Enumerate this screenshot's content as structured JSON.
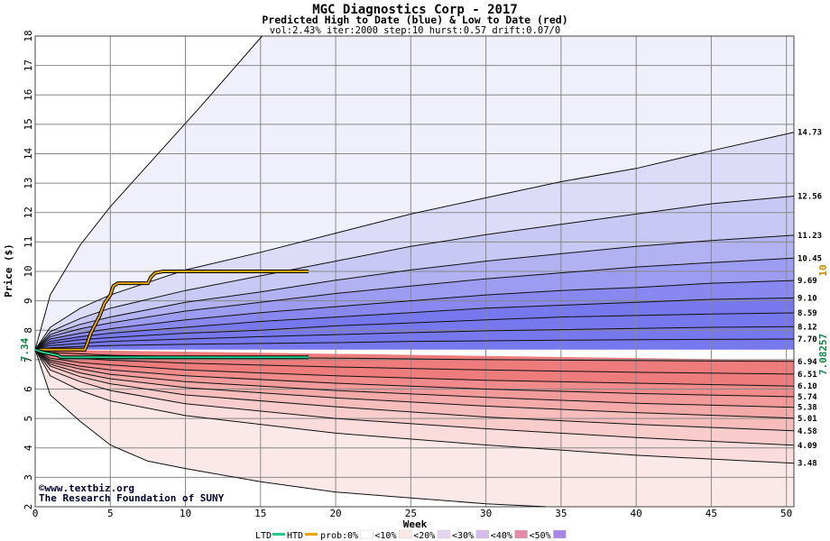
{
  "chart_data": {
    "type": "area",
    "title": "MGC Diagnostics Corp - 2017",
    "subtitle": "Predicted High to Date (blue) &  Low to Date (red)",
    "params": "vol:2.43% iter:2000 step:10 hurst:0.57 drift:0.07/0",
    "xlabel": "Week",
    "ylabel": "Price ($)",
    "xlim": [
      0,
      50.5
    ],
    "ylim": [
      2,
      18
    ],
    "x_ticks": [
      0,
      5,
      10,
      15,
      20,
      25,
      30,
      35,
      40,
      45,
      50
    ],
    "y_ticks": [
      2,
      3,
      4,
      5,
      6,
      7,
      8,
      9,
      10,
      11,
      12,
      13,
      14,
      15,
      16,
      17,
      18
    ],
    "grid": true,
    "start_price": 7.34,
    "start_price_label": "7.34",
    "current_low_label": "7.08257",
    "current_high_label": "10",
    "end_labels": [
      "14.73",
      "12.56",
      "11.23",
      "10.45",
      "9.69",
      "9.10",
      "8.59",
      "8.12",
      "7.70",
      "6.94",
      "6.51",
      "6.10",
      "5.74",
      "5.38",
      "5.01",
      "4.58",
      "4.09",
      "3.48"
    ],
    "high_series": [
      {
        "points": [
          [
            0,
            7.34
          ],
          [
            1,
            9.2
          ],
          [
            3,
            10.9
          ],
          [
            5,
            12.2
          ],
          [
            8,
            13.9
          ],
          [
            11,
            15.6
          ],
          [
            15.1,
            18
          ]
        ]
      },
      {
        "points": [
          [
            0,
            7.34
          ],
          [
            1,
            8.1
          ],
          [
            3,
            8.75
          ],
          [
            5,
            9.2
          ],
          [
            10,
            10.05
          ],
          [
            15,
            10.65
          ],
          [
            20,
            11.3
          ],
          [
            25,
            11.95
          ],
          [
            30,
            12.5
          ],
          [
            35,
            13.05
          ],
          [
            40,
            13.5
          ],
          [
            45,
            14.1
          ],
          [
            50.5,
            14.73
          ]
        ]
      },
      {
        "points": [
          [
            0,
            7.34
          ],
          [
            1,
            7.95
          ],
          [
            3,
            8.4
          ],
          [
            5,
            8.75
          ],
          [
            10,
            9.35
          ],
          [
            15,
            9.85
          ],
          [
            20,
            10.35
          ],
          [
            25,
            10.85
          ],
          [
            30,
            11.25
          ],
          [
            35,
            11.6
          ],
          [
            40,
            11.95
          ],
          [
            45,
            12.3
          ],
          [
            50.5,
            12.56
          ]
        ]
      },
      {
        "points": [
          [
            0,
            7.34
          ],
          [
            1,
            7.85
          ],
          [
            3,
            8.2
          ],
          [
            5,
            8.45
          ],
          [
            10,
            8.95
          ],
          [
            15,
            9.3
          ],
          [
            20,
            9.7
          ],
          [
            25,
            10.05
          ],
          [
            30,
            10.35
          ],
          [
            35,
            10.6
          ],
          [
            40,
            10.85
          ],
          [
            45,
            11.05
          ],
          [
            50.5,
            11.23
          ]
        ]
      },
      {
        "points": [
          [
            0,
            7.34
          ],
          [
            1,
            7.78
          ],
          [
            3,
            8.05
          ],
          [
            5,
            8.25
          ],
          [
            10,
            8.65
          ],
          [
            15,
            8.95
          ],
          [
            20,
            9.25
          ],
          [
            25,
            9.5
          ],
          [
            30,
            9.75
          ],
          [
            35,
            9.95
          ],
          [
            40,
            10.15
          ],
          [
            45,
            10.3
          ],
          [
            50.5,
            10.45
          ]
        ]
      },
      {
        "points": [
          [
            0,
            7.34
          ],
          [
            1,
            7.7
          ],
          [
            3,
            7.9
          ],
          [
            5,
            8.05
          ],
          [
            10,
            8.35
          ],
          [
            15,
            8.6
          ],
          [
            20,
            8.8
          ],
          [
            25,
            9.0
          ],
          [
            30,
            9.2
          ],
          [
            35,
            9.35
          ],
          [
            40,
            9.45
          ],
          [
            45,
            9.6
          ],
          [
            50.5,
            9.69
          ]
        ]
      },
      {
        "points": [
          [
            0,
            7.34
          ],
          [
            1,
            7.62
          ],
          [
            3,
            7.78
          ],
          [
            5,
            7.9
          ],
          [
            10,
            8.1
          ],
          [
            15,
            8.3
          ],
          [
            20,
            8.45
          ],
          [
            25,
            8.6
          ],
          [
            30,
            8.75
          ],
          [
            35,
            8.85
          ],
          [
            40,
            8.95
          ],
          [
            45,
            9.05
          ],
          [
            50.5,
            9.1
          ]
        ]
      },
      {
        "points": [
          [
            0,
            7.34
          ],
          [
            1,
            7.55
          ],
          [
            3,
            7.68
          ],
          [
            5,
            7.75
          ],
          [
            10,
            7.9
          ],
          [
            15,
            8.0
          ],
          [
            20,
            8.15
          ],
          [
            25,
            8.25
          ],
          [
            30,
            8.35
          ],
          [
            35,
            8.45
          ],
          [
            40,
            8.5
          ],
          [
            45,
            8.55
          ],
          [
            50.5,
            8.59
          ]
        ]
      },
      {
        "points": [
          [
            0,
            7.34
          ],
          [
            1,
            7.48
          ],
          [
            3,
            7.55
          ],
          [
            5,
            7.62
          ],
          [
            10,
            7.7
          ],
          [
            15,
            7.78
          ],
          [
            20,
            7.85
          ],
          [
            25,
            7.92
          ],
          [
            30,
            7.98
          ],
          [
            35,
            8.02
          ],
          [
            40,
            8.06
          ],
          [
            45,
            8.1
          ],
          [
            50.5,
            8.12
          ]
        ]
      },
      {
        "points": [
          [
            0,
            7.34
          ],
          [
            1,
            7.4
          ],
          [
            3,
            7.45
          ],
          [
            5,
            7.48
          ],
          [
            10,
            7.52
          ],
          [
            15,
            7.55
          ],
          [
            20,
            7.58
          ],
          [
            25,
            7.62
          ],
          [
            30,
            7.64
          ],
          [
            35,
            7.66
          ],
          [
            40,
            7.68
          ],
          [
            45,
            7.69
          ],
          [
            50.5,
            7.7
          ]
        ]
      }
    ],
    "low_series": [
      {
        "points": [
          [
            0,
            7.34
          ],
          [
            1,
            7.25
          ],
          [
            5,
            7.15
          ],
          [
            10,
            7.1
          ],
          [
            20,
            7.05
          ],
          [
            30,
            7.0
          ],
          [
            40,
            6.97
          ],
          [
            50.5,
            6.94
          ]
        ]
      },
      {
        "points": [
          [
            0,
            7.34
          ],
          [
            1,
            7.15
          ],
          [
            3,
            7.05
          ],
          [
            5,
            6.98
          ],
          [
            10,
            6.88
          ],
          [
            20,
            6.75
          ],
          [
            30,
            6.65
          ],
          [
            40,
            6.57
          ],
          [
            50.5,
            6.51
          ]
        ]
      },
      {
        "points": [
          [
            0,
            7.34
          ],
          [
            1,
            7.05
          ],
          [
            3,
            6.9
          ],
          [
            5,
            6.82
          ],
          [
            10,
            6.65
          ],
          [
            20,
            6.45
          ],
          [
            30,
            6.3
          ],
          [
            40,
            6.2
          ],
          [
            50.5,
            6.1
          ]
        ]
      },
      {
        "points": [
          [
            0,
            7.34
          ],
          [
            1,
            6.98
          ],
          [
            3,
            6.78
          ],
          [
            5,
            6.65
          ],
          [
            10,
            6.45
          ],
          [
            20,
            6.2
          ],
          [
            30,
            6.0
          ],
          [
            40,
            5.85
          ],
          [
            50.5,
            5.74
          ]
        ]
      },
      {
        "points": [
          [
            0,
            7.34
          ],
          [
            1,
            6.92
          ],
          [
            3,
            6.68
          ],
          [
            5,
            6.5
          ],
          [
            10,
            6.25
          ],
          [
            20,
            5.95
          ],
          [
            30,
            5.72
          ],
          [
            40,
            5.52
          ],
          [
            50.5,
            5.38
          ]
        ]
      },
      {
        "points": [
          [
            0,
            7.34
          ],
          [
            1,
            6.85
          ],
          [
            3,
            6.55
          ],
          [
            5,
            6.35
          ],
          [
            10,
            6.05
          ],
          [
            20,
            5.7
          ],
          [
            30,
            5.42
          ],
          [
            40,
            5.2
          ],
          [
            50.5,
            5.01
          ]
        ]
      },
      {
        "points": [
          [
            0,
            7.34
          ],
          [
            1,
            6.78
          ],
          [
            3,
            6.42
          ],
          [
            5,
            6.18
          ],
          [
            10,
            5.8
          ],
          [
            20,
            5.4
          ],
          [
            30,
            5.05
          ],
          [
            40,
            4.8
          ],
          [
            50.5,
            4.58
          ]
        ]
      },
      {
        "points": [
          [
            0,
            7.34
          ],
          [
            1,
            6.65
          ],
          [
            3,
            6.25
          ],
          [
            5,
            5.95
          ],
          [
            10,
            5.5
          ],
          [
            20,
            5.0
          ],
          [
            30,
            4.65
          ],
          [
            40,
            4.35
          ],
          [
            50.5,
            4.09
          ]
        ]
      },
      {
        "points": [
          [
            0,
            7.34
          ],
          [
            1,
            6.45
          ],
          [
            3,
            5.95
          ],
          [
            5,
            5.6
          ],
          [
            10,
            5.1
          ],
          [
            20,
            4.5
          ],
          [
            30,
            4.1
          ],
          [
            40,
            3.75
          ],
          [
            50.5,
            3.48
          ]
        ]
      },
      {
        "points": [
          [
            0,
            7.34
          ],
          [
            1,
            5.8
          ],
          [
            3,
            4.9
          ],
          [
            5,
            4.1
          ],
          [
            7.5,
            3.55
          ],
          [
            10,
            3.3
          ],
          [
            15,
            2.85
          ],
          [
            20,
            2.5
          ],
          [
            25,
            2.3
          ],
          [
            30,
            2.1
          ],
          [
            34,
            2
          ]
        ]
      }
    ],
    "htd_path": [
      [
        0,
        7.34
      ],
      [
        1.5,
        7.34
      ],
      [
        3.3,
        7.34
      ],
      [
        3.5,
        7.6
      ],
      [
        3.7,
        7.9
      ],
      [
        4,
        8.2
      ],
      [
        4.3,
        8.5
      ],
      [
        4.6,
        8.9
      ],
      [
        5,
        9.2
      ],
      [
        5.2,
        9.5
      ],
      [
        5.5,
        9.6
      ],
      [
        7.5,
        9.6
      ],
      [
        7.7,
        9.8
      ],
      [
        8,
        9.95
      ],
      [
        8.5,
        10
      ],
      [
        18.2,
        10
      ]
    ],
    "ltd_path": [
      [
        0,
        7.34
      ],
      [
        0.5,
        7.25
      ],
      [
        1.5,
        7.15
      ],
      [
        1.7,
        7.08
      ],
      [
        18.2,
        7.08
      ]
    ],
    "copyright": "©www.textbiz.org",
    "org": "The Research Foundation of SUNY",
    "legend": {
      "ltd": "LTD",
      "htd": "HTD",
      "prob_label": "prob:",
      "buckets": [
        "0%",
        "<10%",
        "<20%",
        "<30%",
        "<40%",
        "<50%"
      ]
    },
    "colors": {
      "ltd": "#22cc88",
      "htd": "#e8a600",
      "blue_bands": [
        "#f0f0fc",
        "#dcdcf8",
        "#c8c8f4",
        "#b2b2f2",
        "#9c9cf2",
        "#8888f0",
        "#7878ee"
      ],
      "red_bands": [
        "#fbe9e9",
        "#fbdcdc",
        "#f9cccc",
        "#f7bcbc",
        "#f5aaaa",
        "#f39a9a",
        "#f18a8a",
        "#ef7c7c"
      ],
      "legend_swatches": [
        "#ffffff",
        "#fbe9e9",
        "#e6d4ee",
        "#d4bce8",
        "#e28aa8",
        "#a884e6"
      ]
    }
  }
}
